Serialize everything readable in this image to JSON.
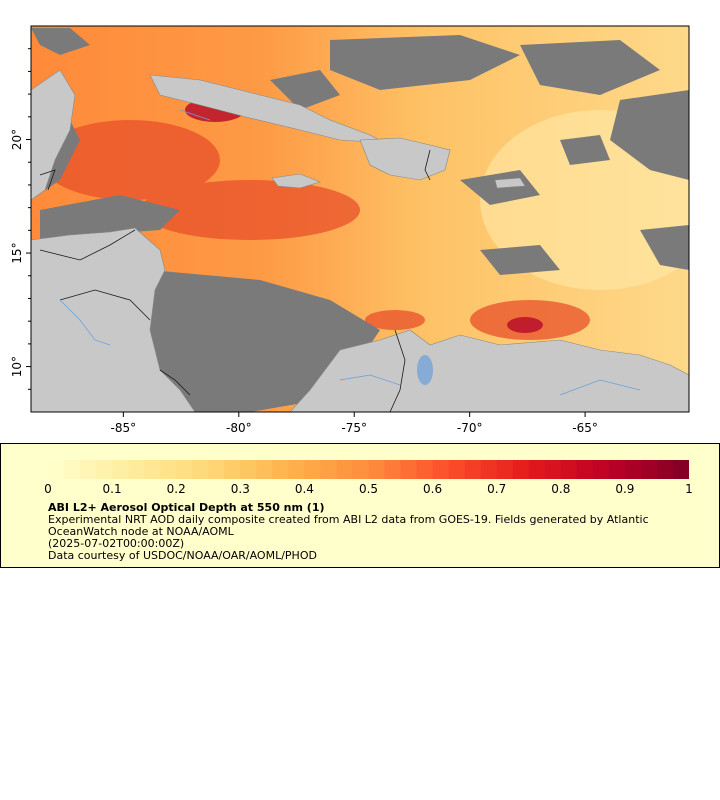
{
  "map": {
    "lon_range": [
      -89,
      -60.5
    ],
    "lat_range": [
      8,
      25
    ],
    "x_ticks": [
      {
        "value": -85,
        "label": "-85°"
      },
      {
        "value": -80,
        "label": "-80°"
      },
      {
        "value": -75,
        "label": "-75°"
      },
      {
        "value": -70,
        "label": "-70°"
      },
      {
        "value": -65,
        "label": "-65°"
      }
    ],
    "y_ticks": [
      {
        "value": 10,
        "label": "10°"
      },
      {
        "value": 15,
        "label": "15°"
      },
      {
        "value": 20,
        "label": "20°"
      }
    ],
    "colors": {
      "land": "#c8c8c8",
      "nodata": "#7a7a7a",
      "border": "#1a1a1a",
      "river": "#6a9ed8"
    }
  },
  "colorbar": {
    "min": 0,
    "max": 1,
    "tick_labels": [
      "0",
      "0.1",
      "0.2",
      "0.3",
      "0.4",
      "0.5",
      "0.6",
      "0.7",
      "0.8",
      "0.9",
      "1"
    ],
    "colors": [
      "#ffffcc",
      "#ffeda0",
      "#fed976",
      "#feb24c",
      "#fd8d3c",
      "#fc4e2a",
      "#e31a1c",
      "#bd0026",
      "#800026"
    ]
  },
  "legend": {
    "title": "ABI L2+ Aerosol Optical Depth at 550 nm (1)",
    "line1": "Experimental NRT AOD daily composite created from ABI L2 data from GOES-19. Fields generated by Atlantic",
    "line2": "OceanWatch node at NOAA/AOML",
    "line3": "(2025-07-02T00:00:00Z)",
    "line4": "Data courtesy of USDOC/NOAA/OAR/AOML/PHOD"
  }
}
